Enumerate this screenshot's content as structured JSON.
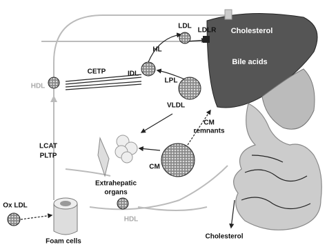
{
  "labels": {
    "ldl": "LDL",
    "ldlr": "LDLR",
    "cholesterol_liver": "Cholesterol",
    "hl": "HL",
    "bile_acids": "Bile acids",
    "hdl_left": "HDL",
    "cetp": "CETP",
    "idl": "IDL",
    "lpl": "LPL",
    "vldl": "VLDL",
    "cm_remnants": [
      "CM",
      "remnants"
    ],
    "lcat": "LCAT",
    "pltp": "PLTP",
    "extrahepatic_organs": [
      "Extrahepatic",
      "organs"
    ],
    "cm": "CM",
    "ox_ldl": "Ox LDL",
    "foam_cells": "Foam cells",
    "hdl_bottom": "HDL",
    "cholesterol_bottom": "Cholesterol"
  }
}
